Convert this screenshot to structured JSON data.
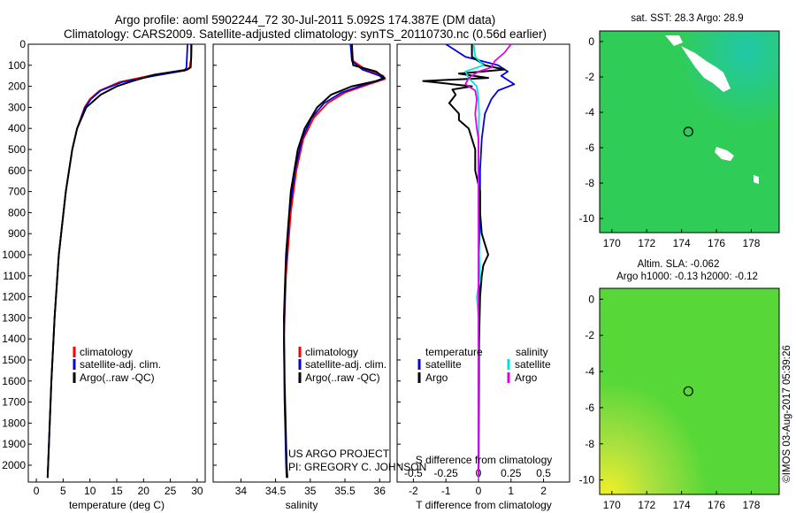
{
  "header": {
    "line1": "Argo profile: aoml 5902244_72 30-Jul-2011 5.092S 174.387E (DM data)",
    "line2": "Climatology: CARS2009. Satellite-adjusted climatology: synTS_20110730.nc (0.56d earlier)"
  },
  "colors": {
    "climatology": "#ff0000",
    "satellite": "#0000e0",
    "argo": "#000000",
    "sal_satellite": "#00e0e0",
    "sal_argo": "#e000e0"
  },
  "depth_ticks": [
    "0",
    "100",
    "200",
    "300",
    "400",
    "500",
    "600",
    "700",
    "800",
    "900",
    "1000",
    "1100",
    "1200",
    "1300",
    "1400",
    "1500",
    "1600",
    "1700",
    "1800",
    "1900",
    "2000"
  ],
  "depth_ticks_num": [
    0,
    100,
    200,
    300,
    400,
    500,
    600,
    700,
    800,
    900,
    1000,
    1100,
    1200,
    1300,
    1400,
    1500,
    1600,
    1700,
    1800,
    1900,
    2000
  ],
  "legend_ts": {
    "clim": "climatology",
    "sat": "satellite-adj. clim.",
    "argo": "Argo(..raw -QC)"
  },
  "legend_diff": {
    "temp_head": "temperature",
    "sal_head": "salinity",
    "sat": "satellite",
    "argo": "Argo"
  },
  "credit": {
    "line1": "US ARGO PROJECT",
    "line2": "PI: GREGORY C. JOHNSON"
  },
  "map_sst": {
    "title": "sat. SST: 28.3 Argo: 28.9"
  },
  "map_sla": {
    "title1": "Altim. SLA: -0.062",
    "title2": "Argo h1000: -0.13 h2000: -0.12"
  },
  "map_xticks": [
    "170",
    "172",
    "174",
    "176",
    "178"
  ],
  "map_xticks_num": [
    170,
    172,
    174,
    176,
    178
  ],
  "map_yticks": [
    "0",
    "-2",
    "-4",
    "-6",
    "-8",
    "-10"
  ],
  "map_yticks_num": [
    0,
    -2,
    -4,
    -6,
    -8,
    -10
  ],
  "map_extent": {
    "lon": [
      169.3,
      179.6
    ],
    "lat": [
      0.6,
      -10.8
    ]
  },
  "float_position": {
    "lon": 174.387,
    "lat": -5.092
  },
  "watermark": "©IMOS 03-Aug-2017 05:39:26",
  "chart_data": [
    {
      "type": "line",
      "id": "temperature",
      "xlabel": "temperature (deg C)",
      "ylabel": "depth",
      "xlim": [
        -1.5,
        31.5
      ],
      "ylim": [
        2080,
        0
      ],
      "xticks": [
        0,
        5,
        10,
        15,
        20,
        25,
        30
      ],
      "xtick_labels": [
        "0",
        "5",
        "10",
        "15",
        "20",
        "25",
        "30"
      ],
      "series": [
        {
          "name": "climatology",
          "color": "#ff0000",
          "depth": [
            0,
            60,
            110,
            125,
            150,
            180,
            220,
            260,
            300,
            400,
            500,
            700,
            1000,
            1300,
            1600,
            2000,
            2060
          ],
          "values": [
            29.0,
            28.9,
            28.6,
            27.8,
            21.0,
            15.5,
            11.8,
            10.0,
            9.0,
            7.6,
            6.7,
            5.5,
            4.2,
            3.4,
            2.8,
            2.2,
            2.1
          ]
        },
        {
          "name": "satellite-adj. clim.",
          "color": "#0000e0",
          "depth": [
            0,
            60,
            110,
            125,
            150,
            180,
            220,
            260,
            300,
            400,
            500,
            700,
            1000,
            1300,
            1600,
            2000,
            2060
          ],
          "values": [
            28.2,
            28.1,
            28.0,
            27.7,
            22.0,
            16.0,
            12.0,
            10.2,
            9.1,
            7.6,
            6.7,
            5.5,
            4.2,
            3.4,
            2.8,
            2.2,
            2.1
          ]
        },
        {
          "name": "Argo(..raw -QC)",
          "color": "#000000",
          "depth": [
            0,
            60,
            110,
            120,
            145,
            175,
            200,
            240,
            300,
            400,
            500,
            700,
            1000,
            1300,
            1600,
            2000,
            2060
          ],
          "values": [
            28.9,
            28.9,
            28.8,
            28.2,
            22.0,
            18.0,
            15.0,
            12.0,
            9.3,
            7.6,
            6.7,
            5.5,
            4.2,
            3.4,
            2.8,
            2.2,
            2.1
          ]
        }
      ]
    },
    {
      "type": "line",
      "id": "salinity",
      "xlabel": "salinity",
      "ylabel": "depth",
      "xlim": [
        33.6,
        36.15
      ],
      "ylim": [
        2080,
        0
      ],
      "xticks": [
        34,
        34.5,
        35,
        35.5,
        36
      ],
      "xtick_labels": [
        "34",
        "34.5",
        "35",
        "35.5",
        "36"
      ],
      "series": [
        {
          "name": "climatology",
          "color": "#ff0000",
          "depth": [
            0,
            80,
            120,
            150,
            165,
            190,
            230,
            280,
            350,
            450,
            600,
            800,
            1100,
            1400,
            1700,
            2000,
            2060
          ],
          "values": [
            35.6,
            35.62,
            35.8,
            36.05,
            36.08,
            35.85,
            35.5,
            35.25,
            35.05,
            34.9,
            34.8,
            34.72,
            34.65,
            34.62,
            34.63,
            34.66,
            34.67
          ]
        },
        {
          "name": "satellite-adj. clim.",
          "color": "#0000e0",
          "depth": [
            0,
            80,
            120,
            150,
            165,
            190,
            230,
            280,
            350,
            450,
            600,
            800,
            1100,
            1400,
            1700,
            2000,
            2060
          ],
          "values": [
            35.58,
            35.6,
            35.75,
            36.0,
            36.05,
            35.8,
            35.45,
            35.2,
            35.02,
            34.88,
            34.78,
            34.7,
            34.64,
            34.62,
            34.63,
            34.65,
            34.66
          ]
        },
        {
          "name": "Argo(..raw -QC)",
          "color": "#000000",
          "depth": [
            0,
            60,
            100,
            130,
            160,
            175,
            200,
            240,
            300,
            400,
            500,
            700,
            1000,
            1300,
            1600,
            2000,
            2060
          ],
          "values": [
            35.6,
            35.6,
            35.62,
            35.95,
            36.07,
            35.95,
            35.6,
            35.3,
            35.1,
            34.92,
            34.82,
            34.72,
            34.65,
            34.62,
            34.63,
            34.66,
            34.67
          ]
        }
      ]
    },
    {
      "type": "line",
      "id": "differences",
      "xlabel": "T difference from climatology",
      "xlabel2": "S difference from climatology",
      "ylabel": "depth",
      "xlim": [
        -2.5,
        2.8
      ],
      "ylim": [
        2080,
        0
      ],
      "xticks": [
        -2,
        -1,
        0,
        1,
        2
      ],
      "xtick_labels": [
        "-2",
        "-1",
        "0",
        "1",
        "2"
      ],
      "sticks": [
        -0.5,
        -0.25,
        0,
        0.25,
        0.5
      ],
      "stick_labels": [
        "-0.5",
        "-0.25",
        "0",
        "0.25",
        "0.5"
      ],
      "series": [
        {
          "name": "temperature satellite",
          "color": "#0000e0",
          "depth": [
            0,
            60,
            100,
            130,
            150,
            170,
            190,
            220,
            260,
            330,
            450,
            600,
            800,
            1000,
            1300,
            1600,
            2000,
            2060
          ],
          "values": [
            -1.0,
            -0.4,
            0.6,
            0.9,
            0.7,
            0.9,
            1.1,
            0.6,
            0.4,
            0.2,
            0.1,
            0.05,
            0.05,
            0.02,
            0.02,
            0.02,
            0.01,
            0.01
          ]
        },
        {
          "name": "temperature Argo",
          "color": "#000000",
          "depth": [
            0,
            60,
            100,
            120,
            140,
            160,
            175,
            190,
            200,
            215,
            240,
            280,
            330,
            360,
            400,
            450,
            500,
            600,
            700,
            800,
            900,
            950,
            1000,
            1050,
            1100,
            1200,
            1400,
            1600,
            1800,
            2000,
            2060
          ],
          "values": [
            -0.2,
            -0.2,
            0.2,
            0.8,
            -0.6,
            0.3,
            -1.7,
            -0.8,
            -0.2,
            -0.8,
            -0.7,
            -0.9,
            -0.6,
            -0.6,
            -0.3,
            -0.2,
            -0.1,
            -0.1,
            0.05,
            0.05,
            0.1,
            0.2,
            0.3,
            0.15,
            0.1,
            0.05,
            0.02,
            0.0,
            0.0,
            0.0,
            0.0
          ]
        },
        {
          "name": "salinity satellite",
          "color": "#00e0e0",
          "depth": [
            0,
            60,
            100,
            130,
            160,
            200,
            260,
            330,
            450,
            600,
            800,
            1000,
            1100,
            1200,
            1300,
            1400,
            1600,
            2000,
            2060
          ],
          "values": [
            -0.15,
            -0.1,
            0.15,
            -0.4,
            -0.3,
            -0.05,
            0.0,
            0.02,
            0.0,
            0.0,
            0.0,
            0.02,
            0.05,
            -0.05,
            0.0,
            0.0,
            0.0,
            0.0,
            0.0
          ]
        },
        {
          "name": "salinity Argo",
          "color": "#e000e0",
          "depth": [
            0,
            40,
            80,
            110,
            130,
            160,
            190,
            220,
            260,
            330,
            400,
            450,
            600,
            800,
            1000,
            1300,
            1600,
            2000,
            2060
          ],
          "values": [
            1.0,
            0.8,
            0.5,
            0.4,
            0.0,
            -0.3,
            -0.4,
            -0.1,
            -0.05,
            -0.1,
            -0.05,
            0.0,
            0.0,
            0.0,
            0.0,
            0.0,
            0.0,
            0.0,
            0.0
          ]
        }
      ]
    }
  ]
}
